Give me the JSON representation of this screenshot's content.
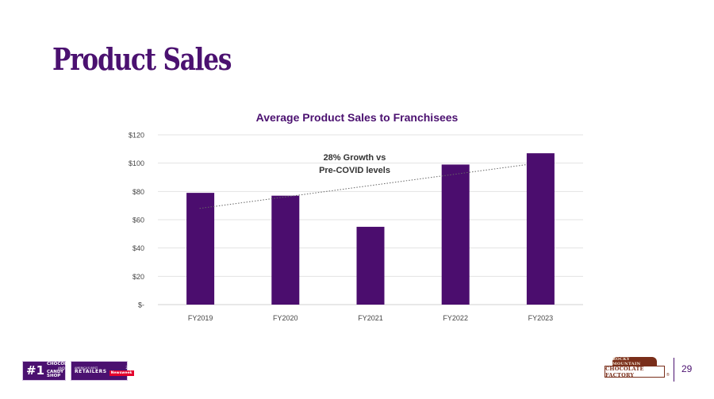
{
  "page": {
    "title": "Product Sales",
    "page_number": "29"
  },
  "footer": {
    "badge1": {
      "rank": "#1",
      "line1": "CHOCOLATE",
      "line2": "AND",
      "line3": "CANDY SHOP"
    },
    "badge2": {
      "line1": "AMERICA'S BEST",
      "line2": "RETAILERS",
      "year": "2022",
      "publisher": "Newsweek"
    },
    "logo": {
      "top": "ROCKY MOUNTAIN",
      "main": "CHOCOLATE FACTORY",
      "mark": "®"
    }
  },
  "colors": {
    "bar": "#4b0d6e",
    "title": "#4b1170",
    "grid": "#e3e3e3",
    "trend": "#666666"
  },
  "chart_data": {
    "type": "bar",
    "title": "Average Product Sales to Franchisees",
    "categories": [
      "FY2019",
      "FY2020",
      "FY2021",
      "FY2022",
      "FY2023"
    ],
    "values": [
      79,
      77,
      55,
      99,
      107
    ],
    "ylim": [
      0,
      120
    ],
    "yticks": [
      0,
      20,
      40,
      60,
      80,
      100,
      120
    ],
    "ytick_labels": [
      "$-",
      "$20",
      "$40",
      "$60",
      "$80",
      "$100",
      "$120"
    ],
    "xlabel": "",
    "ylabel": "",
    "grid": true,
    "trendline": {
      "style": "dotted",
      "start": 68,
      "end": 99
    },
    "annotation": {
      "line1": "28% Growth vs",
      "line2": "Pre-COVID levels"
    }
  }
}
